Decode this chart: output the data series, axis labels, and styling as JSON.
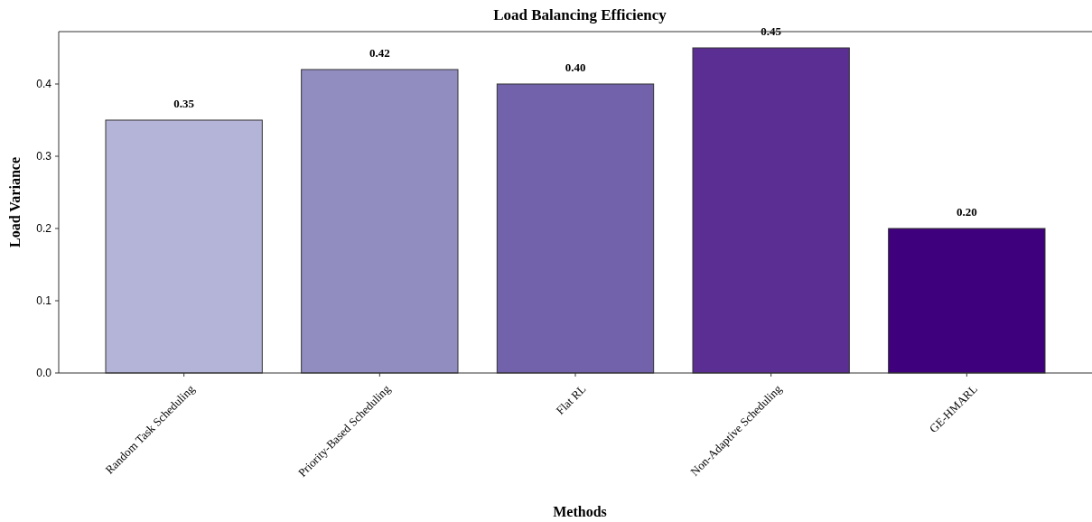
{
  "chart_data": {
    "type": "bar",
    "title": "Load Balancing Efficiency",
    "xlabel": "Methods",
    "ylabel": "Load Variance",
    "categories": [
      "Random Task Scheduling",
      "Priority-Based Scheduling",
      "Flat RL",
      "Non-Adaptive Scheduling",
      "GE-HMARL"
    ],
    "values": [
      0.35,
      0.42,
      0.4,
      0.45,
      0.2
    ],
    "colors": [
      "#b4b4d8",
      "#918dc1",
      "#7262ab",
      "#5a2e92",
      "#3f007d"
    ],
    "value_labels": [
      "0.35",
      "0.42",
      "0.40",
      "0.45",
      "0.20"
    ],
    "ylim": [
      0,
      0.4725
    ],
    "yticks": [
      {
        "value": 0,
        "label": "0.0"
      },
      {
        "value": 0.1,
        "label": "0.1"
      },
      {
        "value": 0.2,
        "label": "0.2"
      },
      {
        "value": 0.3,
        "label": "0.3"
      },
      {
        "value": 0.4,
        "label": "0.4"
      }
    ],
    "grid": false
  }
}
